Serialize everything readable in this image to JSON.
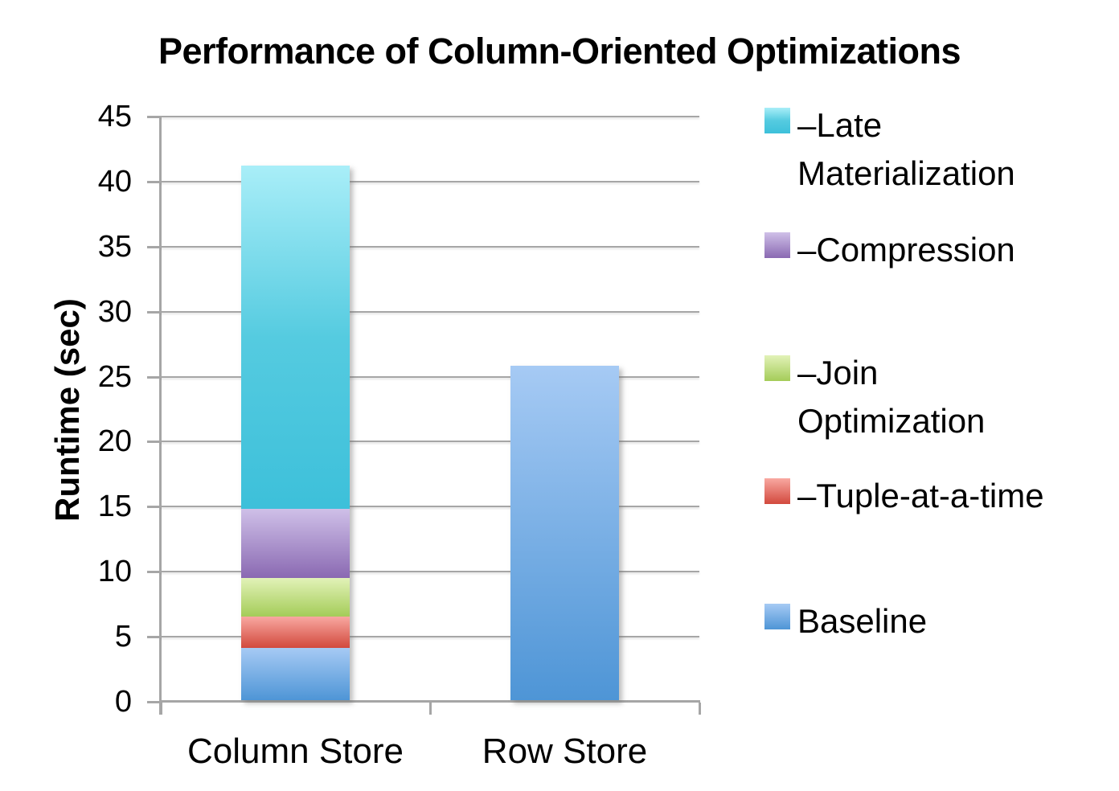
{
  "title": "Performance of Column-Oriented Optimizations",
  "chart_data": {
    "type": "bar",
    "stacked": true,
    "title": "Performance of Column-Oriented Optimizations",
    "xlabel": "",
    "ylabel": "Runtime (sec)",
    "categories": [
      "Column Store",
      "Row Store"
    ],
    "series": [
      {
        "name": "Baseline",
        "values": [
          4.0,
          25.7
        ],
        "color": {
          "top": "#A6CAF4",
          "bottom": "#4E95D6"
        }
      },
      {
        "name": "Tuple-at-a-time",
        "values": [
          2.4,
          0
        ],
        "color": {
          "top": "#F9A8A1",
          "bottom": "#D2493D"
        }
      },
      {
        "name": "Join Optimization",
        "values": [
          3.0,
          0
        ],
        "color": {
          "top": "#E2F2B8",
          "bottom": "#A4CC58"
        }
      },
      {
        "name": "Compression",
        "values": [
          5.3,
          0
        ],
        "color": {
          "top": "#CFC0E8",
          "bottom": "#8A69B2"
        }
      },
      {
        "name": "Late Materialization",
        "values": [
          26.4,
          0
        ],
        "color": {
          "top": "#A9EEF8",
          "mid": "#55CBE0",
          "bottom": "#3DC0DA"
        }
      }
    ],
    "ylim": [
      0,
      45
    ],
    "y_ticks": [
      0,
      5,
      10,
      15,
      20,
      25,
      30,
      35,
      40,
      45
    ],
    "grid": true,
    "gridline_color": "#A6A6A6",
    "legend_position": "right"
  },
  "legend": {
    "items": [
      {
        "label": "–Late Materialization",
        "series_index": 4
      },
      {
        "label": "–Compression",
        "series_index": 3
      },
      {
        "label": "–Join Optimization",
        "series_index": 2
      },
      {
        "label": "–Tuple-at-a-time",
        "series_index": 1
      },
      {
        "label": "Baseline",
        "series_index": 0
      }
    ]
  }
}
